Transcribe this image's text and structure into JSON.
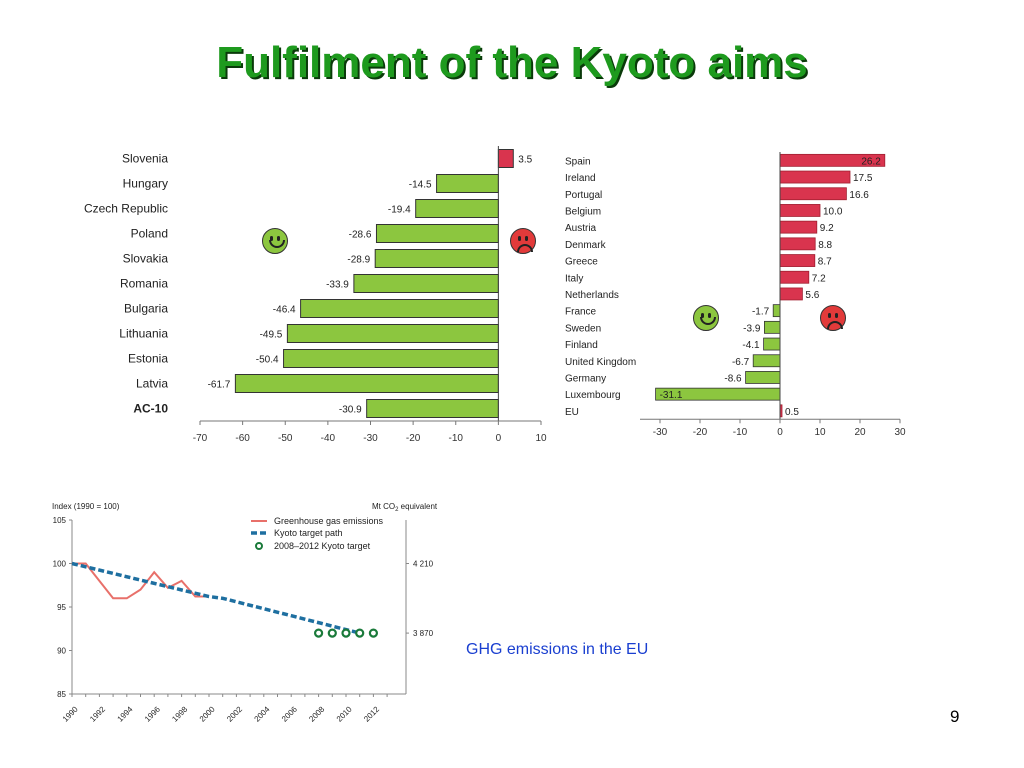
{
  "slide": {
    "title": "Fulfilment of the Kyoto aims",
    "caption": "GHG emissions in the EU",
    "page_number": "9"
  },
  "colors": {
    "title": "#1e9a1e",
    "positive_bar": "#d9344e",
    "negative_bar": "#8cc63f",
    "emissions_line": "#e8706a",
    "kyoto_path": "#1e6fa0",
    "kyoto_target": "#1a7a3a",
    "caption": "#1a3fd0"
  },
  "icons": {
    "happy": "smiley-happy-icon",
    "sad": "smiley-sad-icon"
  },
  "chart_data": [
    {
      "type": "bar",
      "orientation": "horizontal",
      "categories": [
        "Slovenia",
        "Hungary",
        "Czech Republic",
        "Poland",
        "Slovakia",
        "Romania",
        "Bulgaria",
        "Lithuania",
        "Estonia",
        "Latvia",
        "AC-10"
      ],
      "values": [
        3.5,
        -14.5,
        -19.4,
        -28.6,
        -28.9,
        -33.9,
        -46.4,
        -49.5,
        -50.4,
        -61.7,
        -30.9
      ],
      "value_labels": [
        "3.5",
        "-14.5",
        "-19.4",
        "-28.6",
        "-28.9",
        "-33.9",
        "-46.4",
        "-49.5",
        "-50.4",
        "-61.7",
        "-30.9"
      ],
      "xlim": [
        -70,
        10
      ],
      "ticks": [
        "-70",
        "-60",
        "-50",
        "-40",
        "-30",
        "-20",
        "-10",
        "0",
        "10"
      ]
    },
    {
      "type": "bar",
      "orientation": "horizontal",
      "categories": [
        "Spain",
        "Ireland",
        "Portugal",
        "Belgium",
        "Austria",
        "Denmark",
        "Greece",
        "Italy",
        "Netherlands",
        "France",
        "Sweden",
        "Finland",
        "United Kingdom",
        "Germany",
        "Luxembourg",
        "EU"
      ],
      "values": [
        26.2,
        17.5,
        16.6,
        10.0,
        9.2,
        8.8,
        8.7,
        7.2,
        5.6,
        -1.7,
        -3.9,
        -4.1,
        -6.7,
        -8.6,
        -31.1,
        0.5
      ],
      "value_labels": [
        "26.2",
        "17.5",
        "16.6",
        "10.0",
        "9.2",
        "8.8",
        "8.7",
        "7.2",
        "5.6",
        "-1.7",
        "-3.9",
        "-4.1",
        "-6.7",
        "-8.6",
        "-31.1",
        "0.5"
      ],
      "xlim": [
        -30,
        30
      ],
      "ticks": [
        "-30",
        "-20",
        "-10",
        "0",
        "10",
        "20",
        "30"
      ]
    },
    {
      "type": "line",
      "ylabel_left": "Index (1990 = 100)",
      "ylabel_right_prefix": "Mt CO",
      "ylabel_right_sub": "2",
      "ylabel_right_suffix": " equivalent",
      "ylim": [
        85,
        105
      ],
      "y_ticks": [
        "85",
        "90",
        "95",
        "100",
        "105"
      ],
      "x_ticks": [
        "1990",
        "1992",
        "1994",
        "1996",
        "1998",
        "2000",
        "2002",
        "2004",
        "2006",
        "2008",
        "2010",
        "2012"
      ],
      "right_ticks": [
        {
          "label": "4 210",
          "y": 100
        },
        {
          "label": "3 870",
          "y": 92
        }
      ],
      "series": [
        {
          "name": "Greenhouse gas emissions",
          "x": [
            1990,
            1991,
            1992,
            1993,
            1994,
            1995,
            1996,
            1997,
            1998,
            1999,
            2000
          ],
          "values": [
            100,
            100,
            98,
            96,
            96,
            97,
            99,
            97.2,
            98,
            96.2,
            96.2
          ]
        },
        {
          "name": "Kyoto target path",
          "x": [
            1990,
            2000,
            2001,
            2010,
            2011
          ],
          "values": [
            100,
            96.2,
            96,
            92.4,
            92
          ]
        },
        {
          "name": "2008–2012 Kyoto target",
          "x": [
            2008,
            2009,
            2010,
            2011,
            2012
          ],
          "values": [
            92,
            92,
            92,
            92,
            92
          ]
        }
      ]
    }
  ]
}
